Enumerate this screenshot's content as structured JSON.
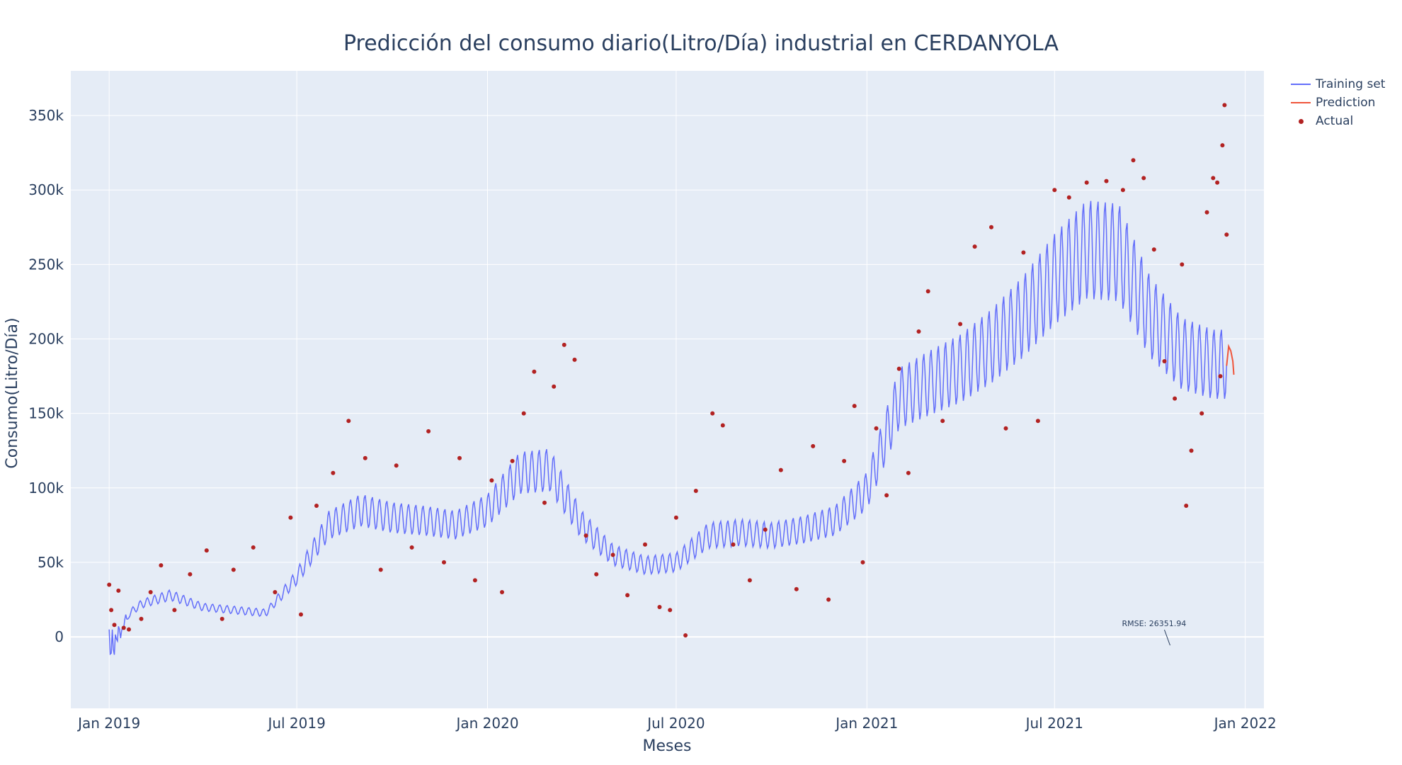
{
  "chart_data": {
    "type": "line",
    "title": "Predicción del consumo diario(Litro/Día) industrial en CERDANYOLA",
    "xlabel": "Meses",
    "ylabel": "Consumo(Litro/Día)",
    "x_range": [
      "2018-11-25",
      "2022-01-19"
    ],
    "ylim": [
      -48000,
      380000
    ],
    "x_ticks": [
      {
        "date": "2019-01-01",
        "label": "Jan 2019"
      },
      {
        "date": "2019-07-01",
        "label": "Jul 2019"
      },
      {
        "date": "2020-01-01",
        "label": "Jan 2020"
      },
      {
        "date": "2020-07-01",
        "label": "Jul 2020"
      },
      {
        "date": "2021-01-01",
        "label": "Jan 2021"
      },
      {
        "date": "2021-07-01",
        "label": "Jul 2021"
      },
      {
        "date": "2022-01-01",
        "label": "Jan 2022"
      }
    ],
    "y_ticks": [
      {
        "value": 0,
        "label": "0"
      },
      {
        "value": 50000,
        "label": "50k"
      },
      {
        "value": 100000,
        "label": "100k"
      },
      {
        "value": 150000,
        "label": "150k"
      },
      {
        "value": 200000,
        "label": "200k"
      },
      {
        "value": 250000,
        "label": "250k"
      },
      {
        "value": 300000,
        "label": "300k"
      },
      {
        "value": 350000,
        "label": "350k"
      }
    ],
    "grid": true,
    "legend_position": "top-right",
    "series": [
      {
        "name": "Training set",
        "kind": "line",
        "color": "#636efa",
        "trend": [
          [
            "2019-01-01",
            5000
          ],
          [
            "2019-02-01",
            22000
          ],
          [
            "2019-03-01",
            28000
          ],
          [
            "2019-04-01",
            20000
          ],
          [
            "2019-05-01",
            18000
          ],
          [
            "2019-06-01",
            16000
          ],
          [
            "2019-07-01",
            40000
          ],
          [
            "2019-08-01",
            75000
          ],
          [
            "2019-09-01",
            85000
          ],
          [
            "2019-10-01",
            80000
          ],
          [
            "2019-11-01",
            78000
          ],
          [
            "2019-12-01",
            75000
          ],
          [
            "2020-01-01",
            85000
          ],
          [
            "2020-02-01",
            110000
          ],
          [
            "2020-03-01",
            112000
          ],
          [
            "2020-04-01",
            75000
          ],
          [
            "2020-05-01",
            55000
          ],
          [
            "2020-06-01",
            48000
          ],
          [
            "2020-07-01",
            50000
          ],
          [
            "2020-08-01",
            68000
          ],
          [
            "2020-09-01",
            70000
          ],
          [
            "2020-10-01",
            68000
          ],
          [
            "2020-11-01",
            72000
          ],
          [
            "2020-12-01",
            78000
          ],
          [
            "2021-01-01",
            98000
          ],
          [
            "2021-02-01",
            160000
          ],
          [
            "2021-03-01",
            170000
          ],
          [
            "2021-04-01",
            180000
          ],
          [
            "2021-05-01",
            195000
          ],
          [
            "2021-06-01",
            215000
          ],
          [
            "2021-07-01",
            240000
          ],
          [
            "2021-08-01",
            260000
          ],
          [
            "2021-09-01",
            258000
          ],
          [
            "2021-10-01",
            215000
          ],
          [
            "2021-11-01",
            190000
          ],
          [
            "2021-12-01",
            183000
          ]
        ],
        "weekly_amplitude": 0.13,
        "x_end": "2021-12-14"
      },
      {
        "name": "Prediction",
        "kind": "line",
        "color": "#ef553b",
        "points": [
          [
            "2021-12-14",
            182000
          ],
          [
            "2021-12-16",
            195000
          ],
          [
            "2021-12-18",
            192000
          ],
          [
            "2021-12-20",
            185000
          ],
          [
            "2021-12-21",
            176000
          ]
        ]
      },
      {
        "name": "Actual",
        "kind": "markers",
        "color": "#b22222",
        "points": [
          [
            "2019-01-01",
            35000
          ],
          [
            "2019-01-03",
            18000
          ],
          [
            "2019-01-06",
            8000
          ],
          [
            "2019-01-10",
            31000
          ],
          [
            "2019-01-15",
            6000
          ],
          [
            "2019-01-20",
            5000
          ],
          [
            "2019-02-01",
            12000
          ],
          [
            "2019-02-10",
            30000
          ],
          [
            "2019-02-20",
            48000
          ],
          [
            "2019-03-05",
            18000
          ],
          [
            "2019-03-20",
            42000
          ],
          [
            "2019-04-05",
            58000
          ],
          [
            "2019-04-20",
            12000
          ],
          [
            "2019-05-01",
            45000
          ],
          [
            "2019-05-20",
            60000
          ],
          [
            "2019-06-10",
            30000
          ],
          [
            "2019-06-25",
            80000
          ],
          [
            "2019-07-05",
            15000
          ],
          [
            "2019-07-20",
            88000
          ],
          [
            "2019-08-05",
            110000
          ],
          [
            "2019-08-20",
            145000
          ],
          [
            "2019-09-05",
            120000
          ],
          [
            "2019-09-20",
            45000
          ],
          [
            "2019-10-05",
            115000
          ],
          [
            "2019-10-20",
            60000
          ],
          [
            "2019-11-05",
            138000
          ],
          [
            "2019-11-20",
            50000
          ],
          [
            "2019-12-05",
            120000
          ],
          [
            "2019-12-20",
            38000
          ],
          [
            "2020-01-05",
            105000
          ],
          [
            "2020-01-15",
            30000
          ],
          [
            "2020-01-25",
            118000
          ],
          [
            "2020-02-05",
            150000
          ],
          [
            "2020-02-15",
            178000
          ],
          [
            "2020-02-25",
            90000
          ],
          [
            "2020-03-05",
            168000
          ],
          [
            "2020-03-15",
            196000
          ],
          [
            "2020-03-25",
            186000
          ],
          [
            "2020-04-05",
            68000
          ],
          [
            "2020-04-15",
            42000
          ],
          [
            "2020-05-01",
            55000
          ],
          [
            "2020-05-15",
            28000
          ],
          [
            "2020-06-01",
            62000
          ],
          [
            "2020-06-15",
            20000
          ],
          [
            "2020-06-25",
            18000
          ],
          [
            "2020-07-01",
            80000
          ],
          [
            "2020-07-10",
            1000
          ],
          [
            "2020-07-20",
            98000
          ],
          [
            "2020-08-05",
            150000
          ],
          [
            "2020-08-15",
            142000
          ],
          [
            "2020-08-25",
            62000
          ],
          [
            "2020-09-10",
            38000
          ],
          [
            "2020-09-25",
            72000
          ],
          [
            "2020-10-10",
            112000
          ],
          [
            "2020-10-25",
            32000
          ],
          [
            "2020-11-10",
            128000
          ],
          [
            "2020-11-25",
            25000
          ],
          [
            "2020-12-10",
            118000
          ],
          [
            "2020-12-20",
            155000
          ],
          [
            "2020-12-28",
            50000
          ],
          [
            "2021-01-10",
            140000
          ],
          [
            "2021-01-20",
            95000
          ],
          [
            "2021-02-01",
            180000
          ],
          [
            "2021-02-10",
            110000
          ],
          [
            "2021-02-20",
            205000
          ],
          [
            "2021-03-01",
            232000
          ],
          [
            "2021-03-15",
            145000
          ],
          [
            "2021-04-01",
            210000
          ],
          [
            "2021-04-15",
            262000
          ],
          [
            "2021-05-01",
            275000
          ],
          [
            "2021-05-15",
            140000
          ],
          [
            "2021-06-01",
            258000
          ],
          [
            "2021-06-15",
            145000
          ],
          [
            "2021-07-01",
            300000
          ],
          [
            "2021-07-15",
            295000
          ],
          [
            "2021-08-01",
            305000
          ],
          [
            "2021-08-20",
            306000
          ],
          [
            "2021-09-05",
            300000
          ],
          [
            "2021-09-15",
            320000
          ],
          [
            "2021-09-25",
            308000
          ],
          [
            "2021-10-05",
            260000
          ],
          [
            "2021-10-15",
            185000
          ],
          [
            "2021-10-25",
            160000
          ],
          [
            "2021-11-01",
            250000
          ],
          [
            "2021-11-05",
            88000
          ],
          [
            "2021-11-10",
            125000
          ],
          [
            "2021-11-20",
            150000
          ],
          [
            "2021-11-25",
            285000
          ],
          [
            "2021-12-01",
            308000
          ],
          [
            "2021-12-05",
            305000
          ],
          [
            "2021-12-10",
            330000
          ],
          [
            "2021-12-12",
            357000
          ],
          [
            "2021-12-14",
            270000
          ],
          [
            "2021-12-08",
            175000
          ]
        ]
      }
    ],
    "annotation": {
      "text": "RMSE: 26351.94",
      "x": "2021-10-15",
      "y": 0
    }
  }
}
